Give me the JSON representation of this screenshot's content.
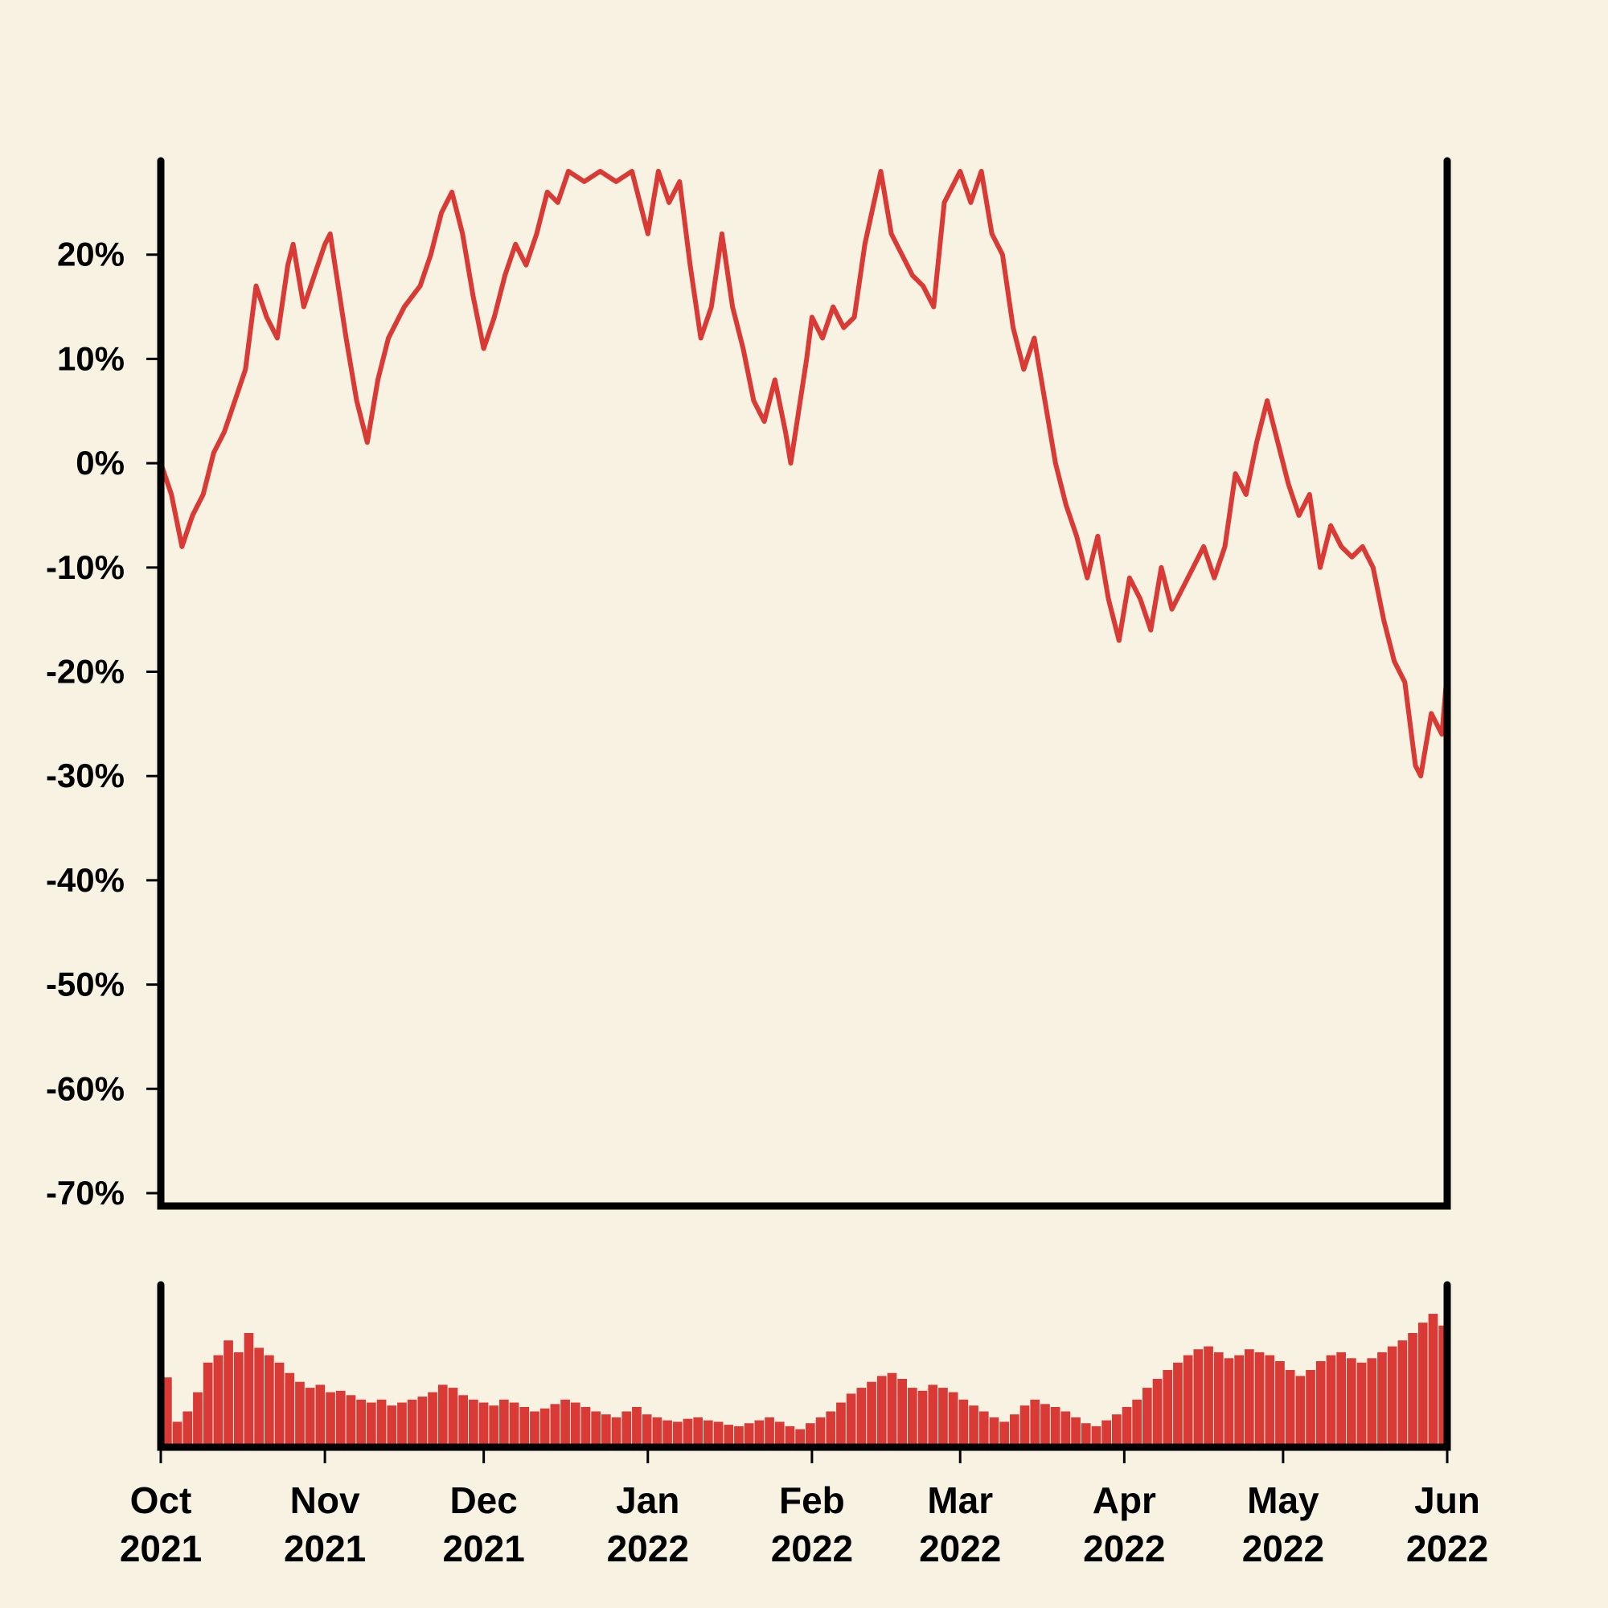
{
  "chart_data": {
    "type": "line",
    "title": "",
    "xlabel": "",
    "ylabel": "",
    "x_range": [
      "2021-10-01",
      "2022-06-01"
    ],
    "ylim": [
      -70,
      29
    ],
    "y_ticks": [
      20,
      10,
      0,
      -10,
      -20,
      -30,
      -40,
      -50,
      -60,
      -70
    ],
    "y_tick_labels": [
      "20%",
      "10%",
      "0%",
      "-10%",
      "-20%",
      "-30%",
      "-40%",
      "-50%",
      "-60%",
      "-70%"
    ],
    "x_ticks": [
      {
        "date": "2021-10-01",
        "label_month": "Oct",
        "label_year": "2021"
      },
      {
        "date": "2021-11-01",
        "label_month": "Nov",
        "label_year": "2021"
      },
      {
        "date": "2021-12-01",
        "label_month": "Dec",
        "label_year": "2021"
      },
      {
        "date": "2022-01-01",
        "label_month": "Jan",
        "label_year": "2022"
      },
      {
        "date": "2022-02-01",
        "label_month": "Feb",
        "label_year": "2022"
      },
      {
        "date": "2022-03-01",
        "label_month": "Mar",
        "label_year": "2022"
      },
      {
        "date": "2022-04-01",
        "label_month": "Apr",
        "label_year": "2022"
      },
      {
        "date": "2022-05-01",
        "label_month": "May",
        "label_year": "2022"
      },
      {
        "date": "2022-06-01",
        "label_month": "Jun",
        "label_year": "2022"
      }
    ],
    "grid": false,
    "line_color": "#d93a35",
    "volume_color": "#d93a35",
    "series": [
      {
        "values": [
          [
            "2021-10-01",
            0
          ],
          [
            "2021-10-03",
            -3
          ],
          [
            "2021-10-05",
            -8
          ],
          [
            "2021-10-07",
            -5
          ],
          [
            "2021-10-09",
            -3
          ],
          [
            "2021-10-11",
            1
          ],
          [
            "2021-10-13",
            3
          ],
          [
            "2021-10-15",
            6
          ],
          [
            "2021-10-17",
            9
          ],
          [
            "2021-10-19",
            17
          ],
          [
            "2021-10-21",
            14
          ],
          [
            "2021-10-23",
            12
          ],
          [
            "2021-10-25",
            19
          ],
          [
            "2021-10-26",
            21
          ],
          [
            "2021-10-28",
            15
          ],
          [
            "2021-10-30",
            18
          ],
          [
            "2021-11-01",
            21
          ],
          [
            "2021-11-02",
            22
          ],
          [
            "2021-11-05",
            12
          ],
          [
            "2021-11-07",
            6
          ],
          [
            "2021-11-09",
            2
          ],
          [
            "2021-11-11",
            8
          ],
          [
            "2021-11-13",
            12
          ],
          [
            "2021-11-16",
            15
          ],
          [
            "2021-11-19",
            17
          ],
          [
            "2021-11-21",
            20
          ],
          [
            "2021-11-23",
            24
          ],
          [
            "2021-11-25",
            26
          ],
          [
            "2021-11-27",
            22
          ],
          [
            "2021-11-29",
            16
          ],
          [
            "2021-12-01",
            11
          ],
          [
            "2021-12-03",
            14
          ],
          [
            "2021-12-05",
            18
          ],
          [
            "2021-12-07",
            21
          ],
          [
            "2021-12-09",
            19
          ],
          [
            "2021-12-11",
            22
          ],
          [
            "2021-12-13",
            26
          ],
          [
            "2021-12-15",
            25
          ],
          [
            "2021-12-17",
            28
          ],
          [
            "2021-12-20",
            27
          ],
          [
            "2021-12-23",
            28
          ],
          [
            "2021-12-26",
            27
          ],
          [
            "2021-12-29",
            28
          ],
          [
            "2022-01-01",
            22
          ],
          [
            "2022-01-03",
            28
          ],
          [
            "2022-01-05",
            25
          ],
          [
            "2022-01-07",
            27
          ],
          [
            "2022-01-09",
            19
          ],
          [
            "2022-01-11",
            12
          ],
          [
            "2022-01-13",
            15
          ],
          [
            "2022-01-15",
            22
          ],
          [
            "2022-01-17",
            15
          ],
          [
            "2022-01-19",
            11
          ],
          [
            "2022-01-21",
            6
          ],
          [
            "2022-01-23",
            4
          ],
          [
            "2022-01-25",
            8
          ],
          [
            "2022-01-27",
            3
          ],
          [
            "2022-01-28",
            0
          ],
          [
            "2022-01-31",
            10
          ],
          [
            "2022-02-01",
            14
          ],
          [
            "2022-02-03",
            12
          ],
          [
            "2022-02-05",
            15
          ],
          [
            "2022-02-07",
            13
          ],
          [
            "2022-02-09",
            14
          ],
          [
            "2022-02-11",
            21
          ],
          [
            "2022-02-14",
            28
          ],
          [
            "2022-02-16",
            22
          ],
          [
            "2022-02-18",
            20
          ],
          [
            "2022-02-20",
            18
          ],
          [
            "2022-02-22",
            17
          ],
          [
            "2022-02-24",
            15
          ],
          [
            "2022-02-26",
            25
          ],
          [
            "2022-02-28",
            27
          ],
          [
            "2022-03-01",
            28
          ],
          [
            "2022-03-03",
            25
          ],
          [
            "2022-03-05",
            28
          ],
          [
            "2022-03-07",
            22
          ],
          [
            "2022-03-09",
            20
          ],
          [
            "2022-03-11",
            13
          ],
          [
            "2022-03-13",
            9
          ],
          [
            "2022-03-15",
            12
          ],
          [
            "2022-03-17",
            6
          ],
          [
            "2022-03-19",
            0
          ],
          [
            "2022-03-21",
            -4
          ],
          [
            "2022-03-23",
            -7
          ],
          [
            "2022-03-25",
            -11
          ],
          [
            "2022-03-27",
            -7
          ],
          [
            "2022-03-29",
            -13
          ],
          [
            "2022-03-31",
            -17
          ],
          [
            "2022-04-02",
            -11
          ],
          [
            "2022-04-04",
            -13
          ],
          [
            "2022-04-06",
            -16
          ],
          [
            "2022-04-08",
            -10
          ],
          [
            "2022-04-10",
            -14
          ],
          [
            "2022-04-12",
            -12
          ],
          [
            "2022-04-14",
            -10
          ],
          [
            "2022-04-16",
            -8
          ],
          [
            "2022-04-18",
            -11
          ],
          [
            "2022-04-20",
            -8
          ],
          [
            "2022-04-22",
            -1
          ],
          [
            "2022-04-24",
            -3
          ],
          [
            "2022-04-26",
            2
          ],
          [
            "2022-04-28",
            6
          ],
          [
            "2022-04-30",
            2
          ],
          [
            "2022-05-02",
            -2
          ],
          [
            "2022-05-04",
            -5
          ],
          [
            "2022-05-06",
            -3
          ],
          [
            "2022-05-08",
            -10
          ],
          [
            "2022-05-10",
            -6
          ],
          [
            "2022-05-12",
            -8
          ],
          [
            "2022-05-14",
            -9
          ],
          [
            "2022-05-16",
            -8
          ],
          [
            "2022-05-18",
            -10
          ],
          [
            "2022-05-20",
            -15
          ],
          [
            "2022-05-22",
            -19
          ],
          [
            "2022-05-24",
            -21
          ],
          [
            "2022-05-26",
            -29
          ],
          [
            "2022-05-27",
            -30
          ],
          [
            "2022-05-29",
            -24
          ],
          [
            "2022-05-31",
            -26
          ],
          [
            "2022-06-01",
            -20
          ]
        ]
      }
    ],
    "volume": {
      "start": "2021-10-01",
      "end": "2022-06-01",
      "relative_heights": [
        0.45,
        0.15,
        0.22,
        0.35,
        0.55,
        0.6,
        0.7,
        0.62,
        0.75,
        0.65,
        0.6,
        0.55,
        0.48,
        0.42,
        0.38,
        0.4,
        0.35,
        0.36,
        0.33,
        0.3,
        0.28,
        0.3,
        0.26,
        0.28,
        0.3,
        0.32,
        0.35,
        0.4,
        0.38,
        0.33,
        0.3,
        0.28,
        0.26,
        0.3,
        0.28,
        0.25,
        0.22,
        0.24,
        0.27,
        0.3,
        0.28,
        0.25,
        0.22,
        0.2,
        0.18,
        0.22,
        0.25,
        0.2,
        0.18,
        0.16,
        0.15,
        0.17,
        0.18,
        0.16,
        0.15,
        0.13,
        0.12,
        0.14,
        0.16,
        0.18,
        0.15,
        0.12,
        0.1,
        0.14,
        0.18,
        0.22,
        0.28,
        0.34,
        0.38,
        0.42,
        0.46,
        0.48,
        0.44,
        0.38,
        0.36,
        0.4,
        0.38,
        0.35,
        0.3,
        0.26,
        0.22,
        0.18,
        0.15,
        0.2,
        0.26,
        0.3,
        0.27,
        0.25,
        0.22,
        0.18,
        0.14,
        0.12,
        0.16,
        0.2,
        0.25,
        0.3,
        0.38,
        0.44,
        0.5,
        0.55,
        0.6,
        0.64,
        0.66,
        0.62,
        0.58,
        0.6,
        0.64,
        0.62,
        0.6,
        0.56,
        0.5,
        0.46,
        0.5,
        0.56,
        0.6,
        0.62,
        0.58,
        0.55,
        0.58,
        0.62,
        0.66,
        0.7,
        0.75,
        0.82,
        0.88,
        0.8
      ]
    }
  }
}
